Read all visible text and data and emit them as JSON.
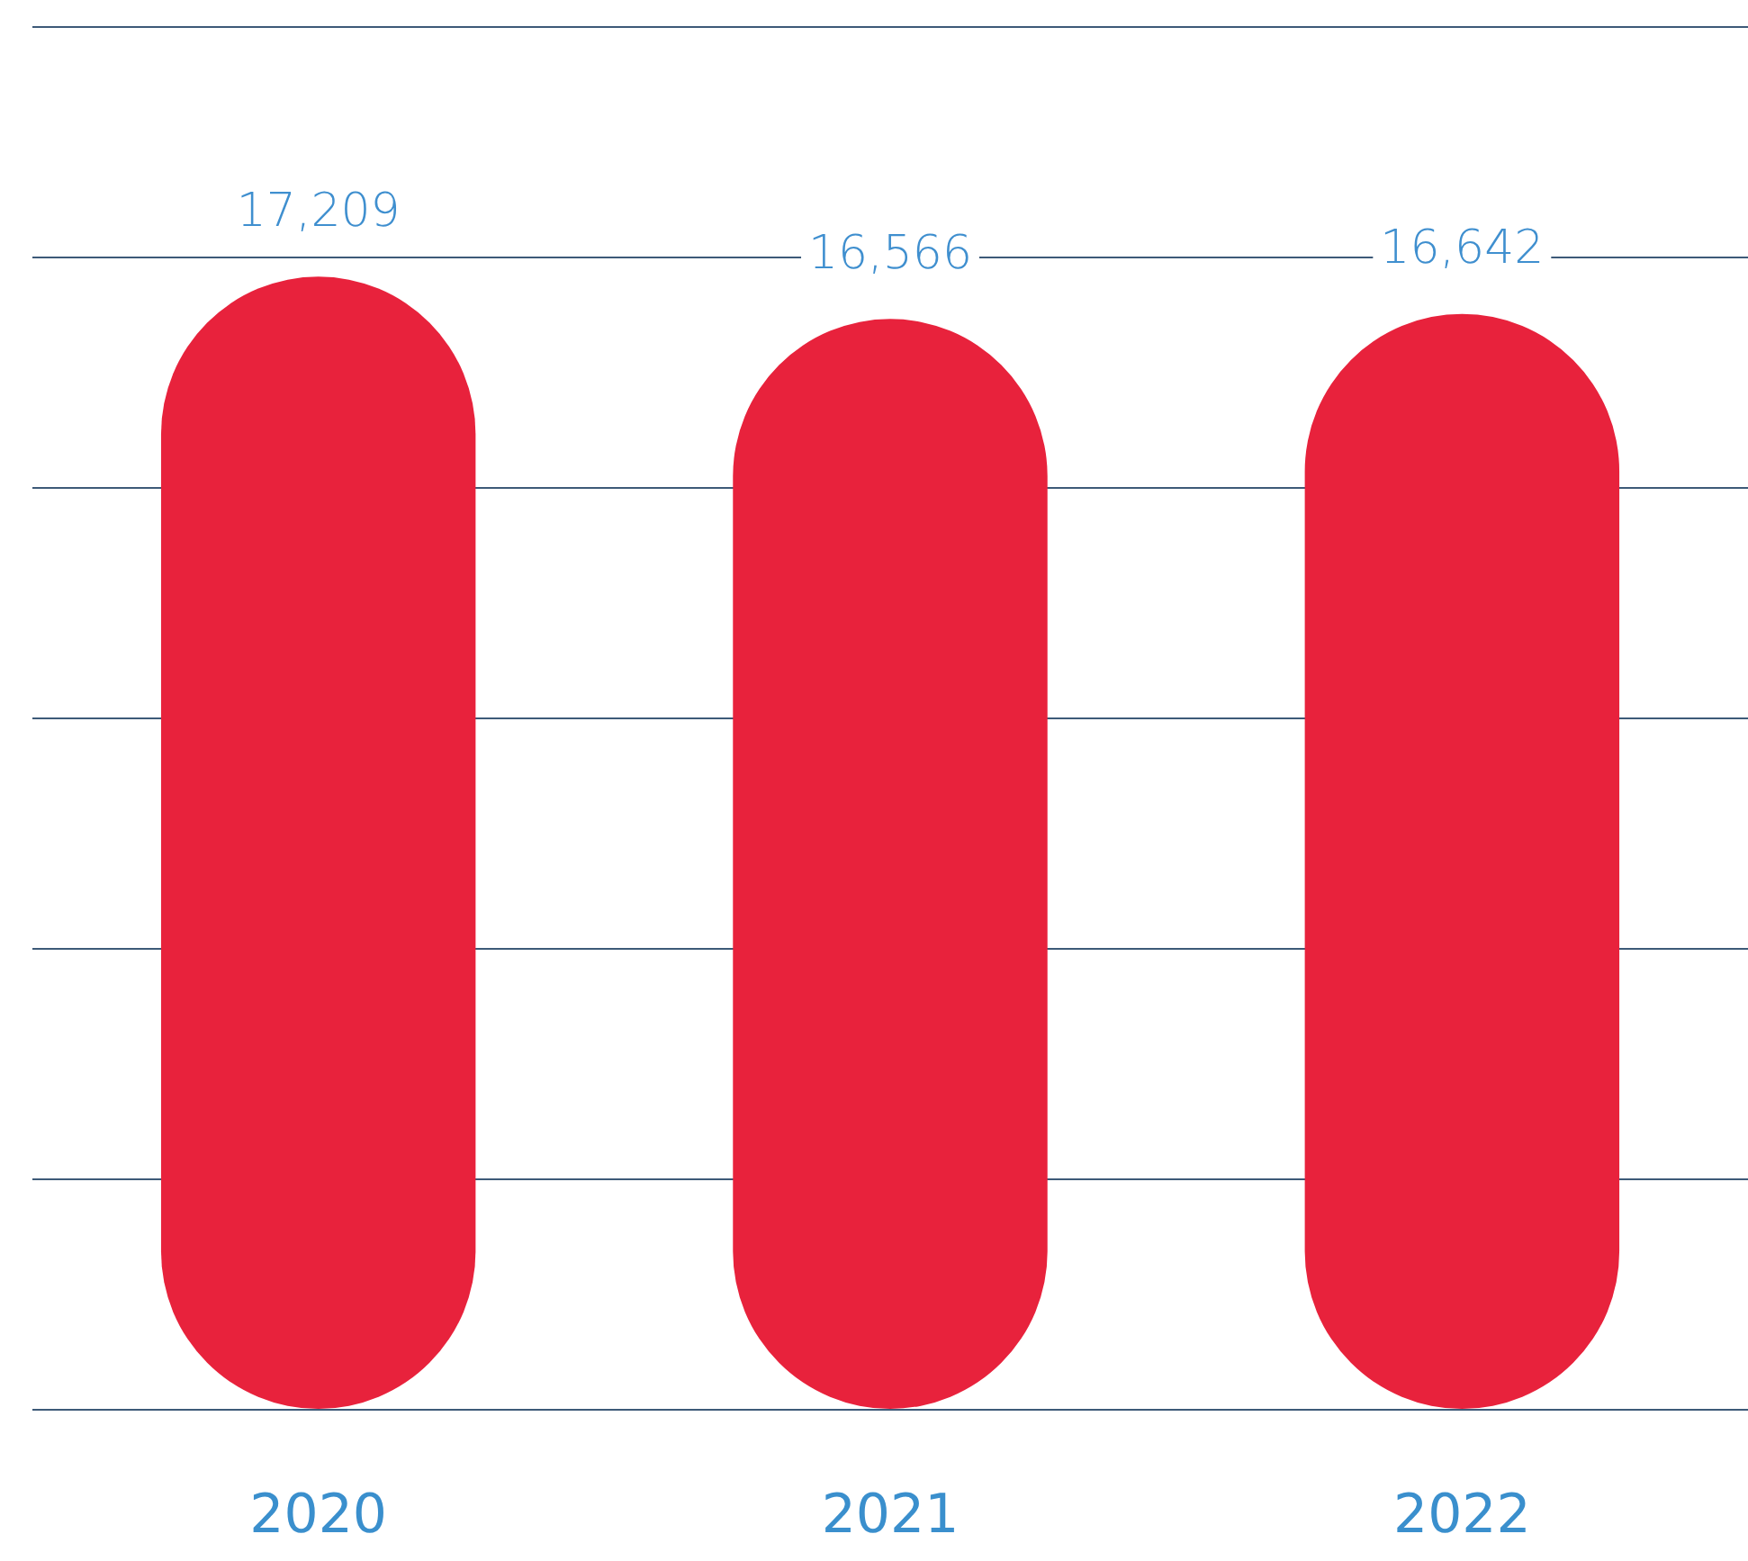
{
  "chart_data": {
    "type": "bar",
    "categories": [
      "2020",
      "2021",
      "2022"
    ],
    "values": [
      17209,
      16566,
      16642
    ],
    "color": "#e8223c",
    "value_labels": [
      "17,209",
      "16,566",
      "16,642"
    ],
    "ylim": [
      0,
      21000
    ],
    "yticks": [
      {
        "value": 0,
        "label": null
      },
      {
        "value": 3500,
        "label": null
      },
      {
        "value": 7000,
        "label": null
      },
      {
        "value": 10500,
        "label": null
      },
      {
        "value": 14000,
        "label": null
      },
      {
        "value": 17500,
        "label": null
      },
      {
        "value": 21000,
        "label": null
      }
    ],
    "grid": "y",
    "legend": false,
    "tick_labels": "x"
  }
}
